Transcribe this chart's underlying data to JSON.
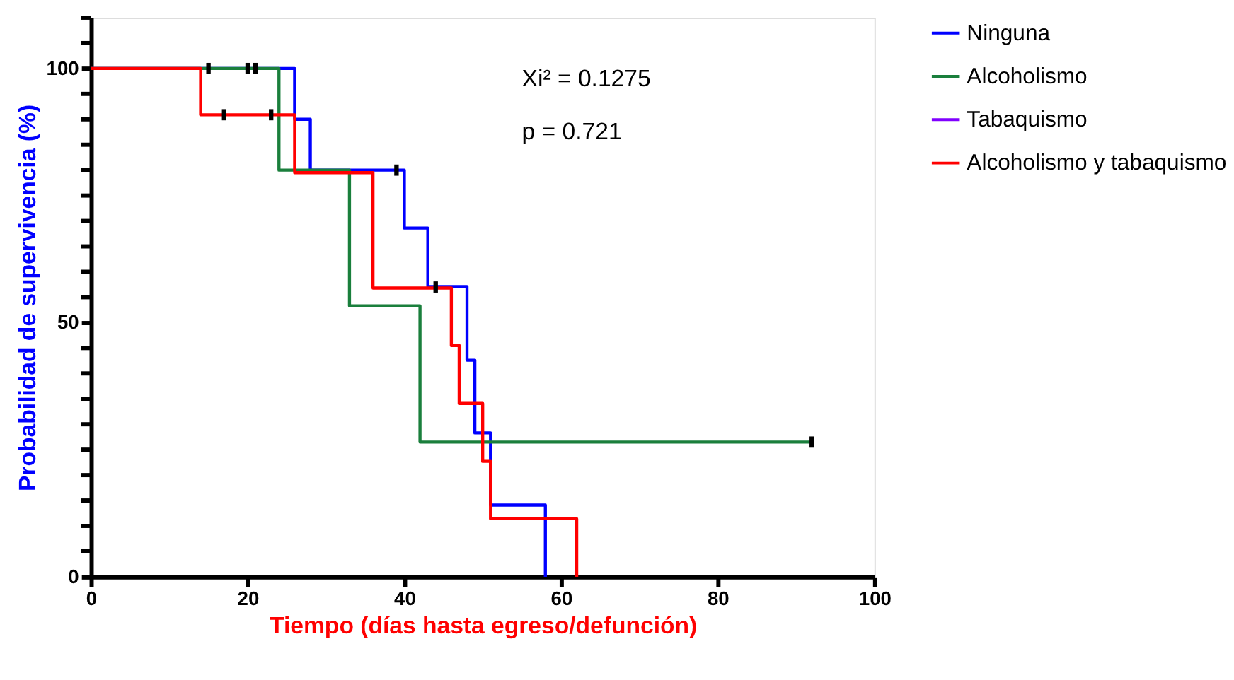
{
  "chart_data": {
    "type": "step",
    "xlabel": "Tiempo (días hasta egreso/defunción)",
    "ylabel": "Probabilidad de supervivencia (%)",
    "xlim": [
      0,
      100
    ],
    "xticks": [
      0,
      20,
      40,
      60,
      80,
      100
    ],
    "ylim": [
      0,
      110
    ],
    "yticks": [
      0,
      {
        "value": 5,
        "label": null
      },
      {
        "value": 10,
        "label": null
      },
      {
        "value": 15,
        "label": null
      },
      {
        "value": 20,
        "label": null
      },
      {
        "value": 25,
        "label": null
      },
      {
        "value": 30,
        "label": null
      },
      {
        "value": 35,
        "label": null
      },
      {
        "value": 40,
        "label": null
      },
      {
        "value": 45,
        "label": null
      },
      50,
      {
        "value": 55,
        "label": null
      },
      {
        "value": 60,
        "label": null
      },
      {
        "value": 65,
        "label": null
      },
      {
        "value": 70,
        "label": null
      },
      {
        "value": 75,
        "label": null
      },
      {
        "value": 80,
        "label": null
      },
      {
        "value": 85,
        "label": null
      },
      {
        "value": 90,
        "label": null
      },
      {
        "value": 95,
        "label": null
      },
      100,
      {
        "value": 105,
        "label": null
      },
      {
        "value": 110,
        "label": null
      }
    ],
    "grid": false,
    "legend": "top right",
    "annotations": [
      "Xi² = 0.1275",
      "p = 0.721"
    ],
    "series": [
      {
        "name": "Ninguna",
        "color": "#0000ff",
        "x": [
          0,
          26,
          28,
          40,
          43,
          48,
          49,
          51,
          58
        ],
        "values": [
          100,
          90,
          80,
          68.6,
          57.1,
          42.6,
          28.3,
          14.1,
          0
        ]
      },
      {
        "name": "Alcoholismo",
        "color": "#1a7f3c",
        "x": [
          0,
          24,
          33,
          42,
          92
        ],
        "values": [
          100,
          80,
          53.3,
          26.5,
          26.5
        ]
      },
      {
        "name": "Tabaquismo",
        "color": "#8000ff"
      },
      {
        "name": "Alcoholismo y tabaquismo",
        "color": "#ff0000",
        "x": [
          0,
          14,
          26,
          36,
          46,
          47,
          50,
          51,
          62
        ],
        "values": [
          100,
          90.9,
          79.5,
          56.8,
          45.5,
          34.1,
          22.7,
          11.4,
          0
        ]
      },
      {
        "type": "scatter",
        "color": "#000000",
        "x": [
          15,
          20,
          21,
          39,
          44,
          17,
          23,
          92
        ],
        "values": [
          100,
          100,
          100,
          80,
          57,
          90.9,
          90.9,
          26.5
        ]
      }
    ]
  }
}
